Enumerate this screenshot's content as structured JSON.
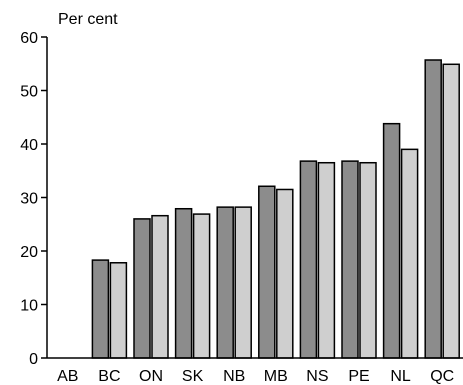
{
  "chart_data": {
    "type": "bar",
    "title": "",
    "xlabel": "",
    "ylabel": "Per cent",
    "categories": [
      "AB",
      "BC",
      "ON",
      "SK",
      "NB",
      "MB",
      "NS",
      "PE",
      "NL",
      "QC"
    ],
    "series": [
      {
        "values": [
          0,
          18.3,
          26.0,
          27.9,
          28.2,
          32.1,
          36.8,
          36.8,
          43.8,
          55.7
        ],
        "color": "#8c8c8c"
      },
      {
        "values": [
          0,
          17.8,
          26.6,
          26.9,
          28.2,
          31.5,
          36.5,
          36.5,
          39.0,
          54.9
        ],
        "color": "#cfcfcf"
      }
    ],
    "yticks": [
      0,
      10,
      20,
      30,
      40,
      50,
      60
    ],
    "ylim": [
      0,
      60
    ],
    "grid": false,
    "legend": "none"
  }
}
